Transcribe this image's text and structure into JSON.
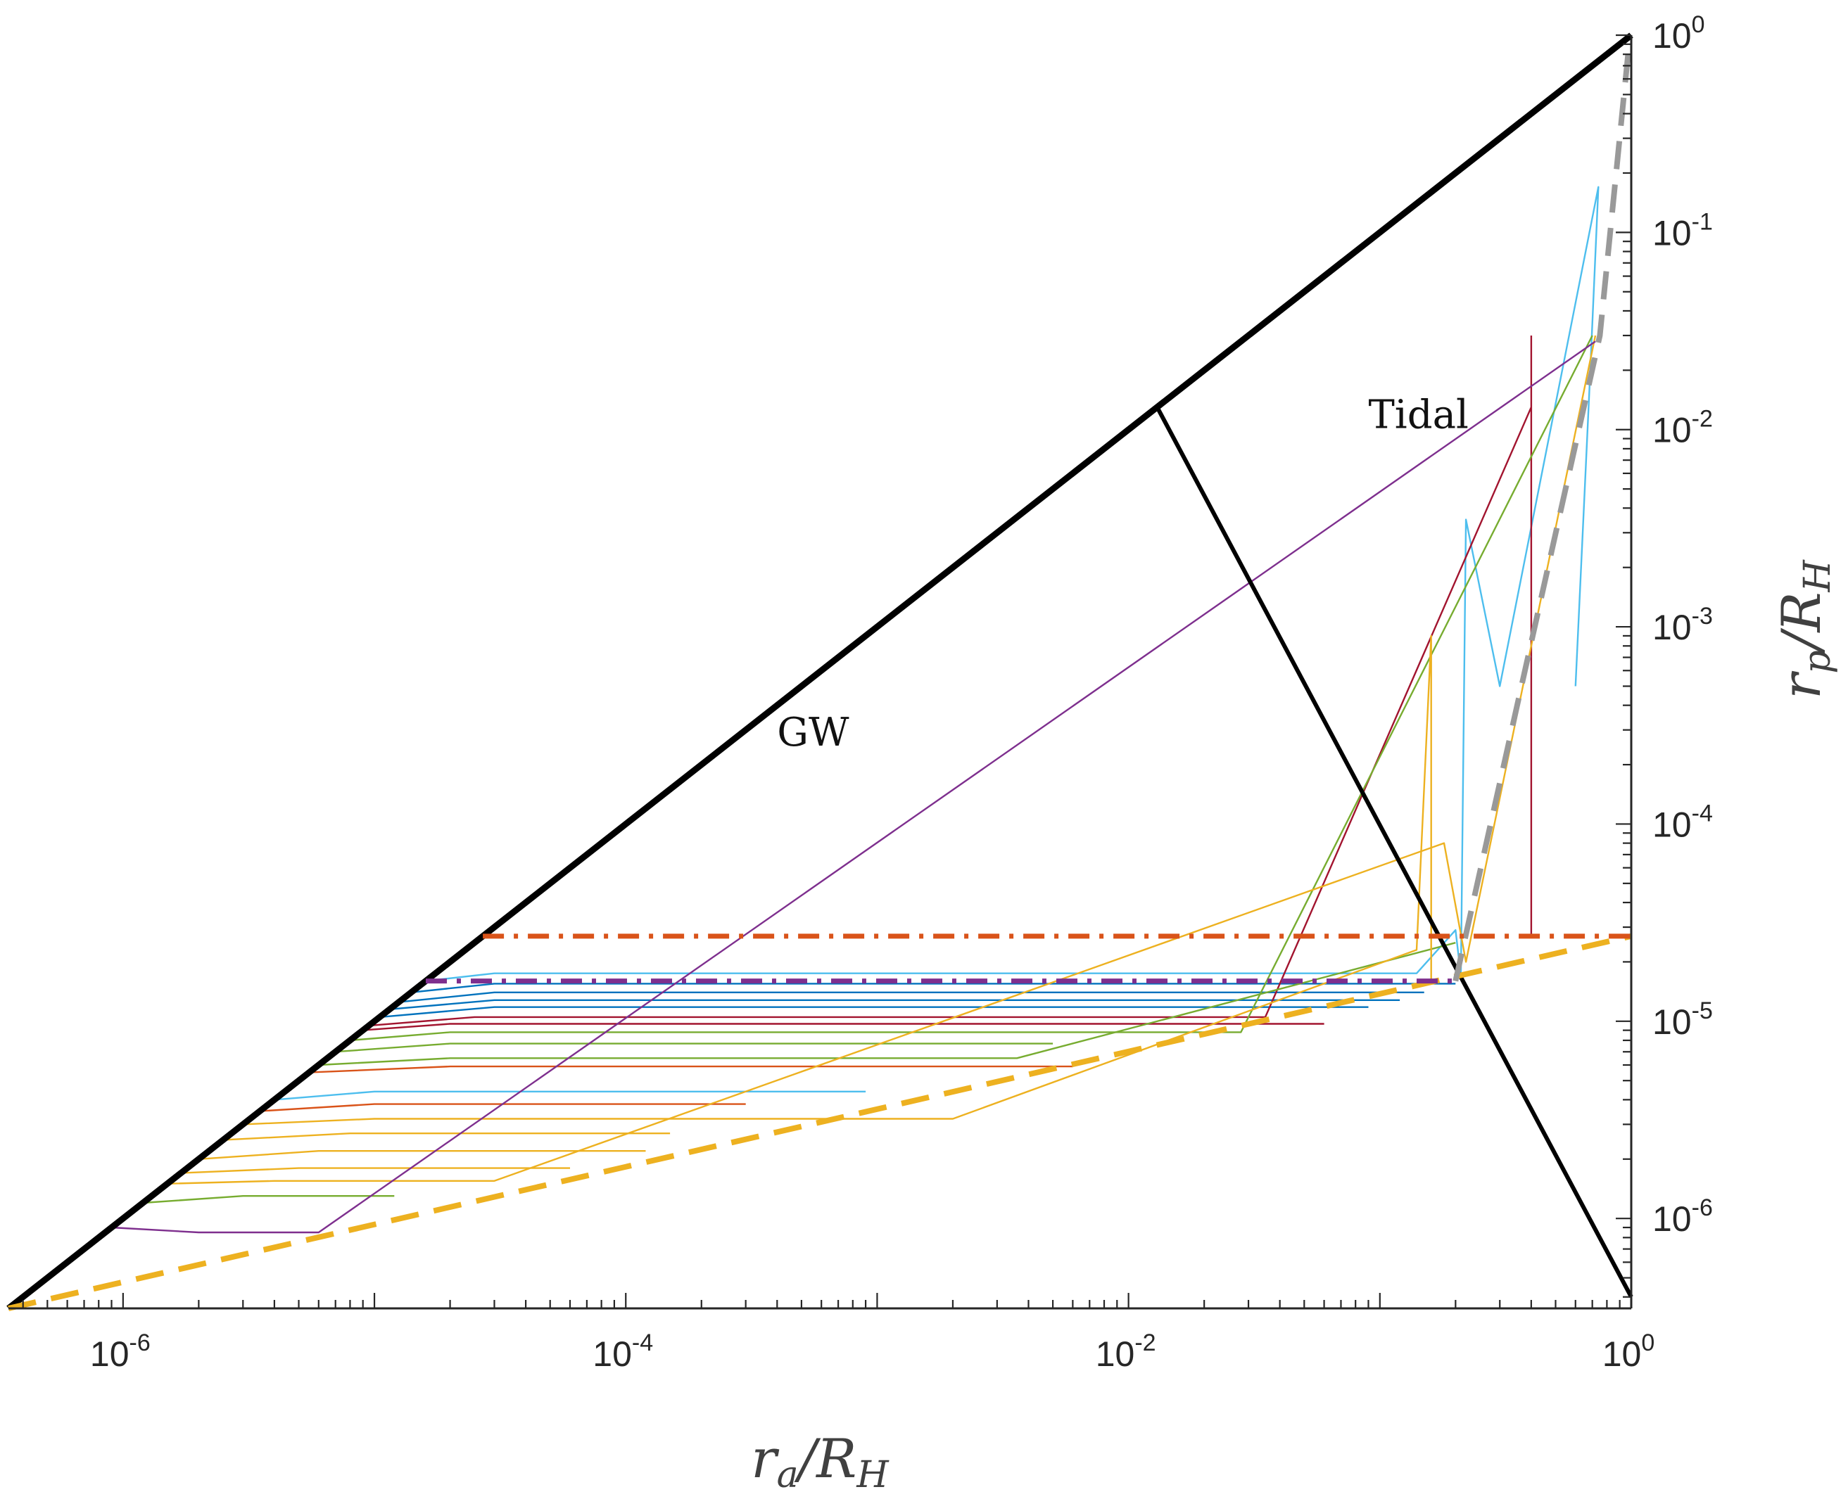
{
  "chart_data": {
    "type": "line",
    "xscale": "log",
    "yscale": "log",
    "xlim": [
      3.5e-07,
      1
    ],
    "ylim": [
      3.5e-07,
      1
    ],
    "xlabel": "r_a/R_H",
    "ylabel": "r_p/R_H",
    "xlabel_parts": {
      "main": "r",
      "sub": "a",
      "rest": "/R",
      "sub2": "H"
    },
    "ylabel_parts": {
      "main": "r",
      "sub": "p",
      "rest": "/R",
      "sub2": "H"
    },
    "x_ticks": [
      {
        "value": 1e-06,
        "base": "10",
        "exp": "-6"
      },
      {
        "value": 0.0001,
        "base": "10",
        "exp": "-4"
      },
      {
        "value": 0.01,
        "base": "10",
        "exp": "-2"
      },
      {
        "value": 1,
        "base": "10",
        "exp": "0"
      }
    ],
    "y_ticks": [
      {
        "value": 1e-06,
        "base": "10",
        "exp": "-6"
      },
      {
        "value": 1e-05,
        "base": "10",
        "exp": "-5"
      },
      {
        "value": 0.0001,
        "base": "10",
        "exp": "-4"
      },
      {
        "value": 0.001,
        "base": "10",
        "exp": "-3"
      },
      {
        "value": 0.01,
        "base": "10",
        "exp": "-2"
      },
      {
        "value": 0.1,
        "base": "10",
        "exp": "-1"
      },
      {
        "value": 1,
        "base": "10",
        "exp": "0"
      }
    ],
    "x_tick_label_values": [
      "10^-6",
      "10^-4",
      "10^-2",
      "10^0"
    ],
    "annotations": [
      {
        "text": "GW",
        "x": 0.0004,
        "y": 0.00025
      },
      {
        "text": "Tidal",
        "x": 0.09,
        "y": 0.0102
      }
    ],
    "guides": [
      {
        "name": "ra-equals-rp",
        "color": "#000000",
        "style": "solid-thick",
        "x": [
          3.5e-07,
          1
        ],
        "y": [
          3.5e-07,
          1
        ]
      },
      {
        "name": "gw-tidal-boundary",
        "color": "#000000",
        "style": "solid",
        "x": [
          0.013,
          1
        ],
        "y": [
          0.013,
          4e-07
        ]
      },
      {
        "name": "lower-dashed-orange",
        "color": "#EDB120",
        "style": "dashed",
        "x": [
          3.5e-07,
          1
        ],
        "y": [
          3.5e-07,
          2.7e-05
        ]
      },
      {
        "name": "lower-dashed-gray",
        "color": "#999999",
        "style": "dashed",
        "x": [
          0.2,
          0.75,
          0.98
        ],
        "y": [
          1.6e-05,
          0.03,
          0.9
        ]
      },
      {
        "name": "upper-dashdot-orange",
        "color": "#D95319",
        "style": "dash-dot",
        "x": [
          2.7e-05,
          1
        ],
        "y": [
          2.7e-05,
          2.7e-05
        ]
      },
      {
        "name": "upper-dashdot-purple",
        "color": "#7E2F8E",
        "style": "dash-dot",
        "x": [
          1.6e-05,
          0.2
        ],
        "y": [
          1.6e-05,
          1.6e-05
        ]
      }
    ],
    "series": [
      {
        "color": "#4DBEEE",
        "x": [
          1.6e-05,
          3e-05,
          0.14,
          0.2,
          0.21,
          0.22,
          0.3,
          0.55,
          0.74,
          0.68,
          0.6
        ],
        "y": [
          1.6e-05,
          1.75e-05,
          1.75e-05,
          2.9e-05,
          1.7e-05,
          0.0035,
          0.0005,
          0.025,
          0.17,
          0.015,
          0.0005
        ]
      },
      {
        "color": "#0072BD",
        "x": [
          1.4e-05,
          3e-05,
          0.2
        ],
        "y": [
          1.4e-05,
          1.55e-05,
          1.55e-05
        ]
      },
      {
        "color": "#0072BD",
        "x": [
          1.25e-05,
          3e-05,
          0.15
        ],
        "y": [
          1.25e-05,
          1.4e-05,
          1.4e-05
        ]
      },
      {
        "color": "#0072BD",
        "x": [
          1.15e-05,
          3e-05,
          0.12
        ],
        "y": [
          1.15e-05,
          1.28e-05,
          1.28e-05
        ]
      },
      {
        "color": "#0072BD",
        "x": [
          1.05e-05,
          3e-05,
          0.09
        ],
        "y": [
          1.05e-05,
          1.18e-05,
          1.18e-05
        ]
      },
      {
        "color": "#A2142F",
        "x": [
          9.5e-06,
          2.5e-05,
          0.035,
          0.4,
          0.4,
          0.4
        ],
        "y": [
          9.5e-06,
          1.05e-05,
          1.05e-05,
          0.013,
          2.7e-05,
          0.03
        ]
      },
      {
        "color": "#A2142F",
        "x": [
          9e-06,
          2e-05,
          0.06
        ],
        "y": [
          9e-06,
          9.7e-06,
          9.7e-06
        ]
      },
      {
        "color": "#77AC30",
        "x": [
          8e-06,
          2e-05,
          0.028,
          0.7
        ],
        "y": [
          8e-06,
          8.8e-06,
          8.8e-06,
          0.03
        ]
      },
      {
        "color": "#77AC30",
        "x": [
          7e-06,
          2e-05,
          0.005
        ],
        "y": [
          7e-06,
          7.7e-06,
          7.7e-06
        ]
      },
      {
        "color": "#77AC30",
        "x": [
          6e-06,
          2e-05,
          0.0036,
          0.2
        ],
        "y": [
          6e-06,
          6.5e-06,
          6.5e-06,
          2.5e-05
        ]
      },
      {
        "color": "#D95319",
        "x": [
          5.5e-06,
          2e-05,
          0.006
        ],
        "y": [
          5.5e-06,
          5.9e-06,
          5.9e-06
        ]
      },
      {
        "color": "#4DBEEE",
        "x": [
          4e-06,
          1e-05,
          0.0009
        ],
        "y": [
          4e-06,
          4.4e-06,
          4.4e-06
        ]
      },
      {
        "color": "#D95319",
        "x": [
          3.5e-06,
          1e-05,
          0.0003
        ],
        "y": [
          3.5e-06,
          3.8e-06,
          3.8e-06
        ]
      },
      {
        "color": "#EDB120",
        "x": [
          3e-06,
          1e-05,
          0.002,
          0.14,
          0.16,
          0.16
        ],
        "y": [
          3e-06,
          3.2e-06,
          3.2e-06,
          2.3e-05,
          0.0009,
          1.6e-05
        ]
      },
      {
        "color": "#EDB120",
        "x": [
          2.5e-06,
          8e-06,
          0.00015
        ],
        "y": [
          2.5e-06,
          2.7e-06,
          2.7e-06
        ]
      },
      {
        "color": "#EDB120",
        "x": [
          2e-06,
          6e-06,
          0.00012
        ],
        "y": [
          2e-06,
          2.2e-06,
          2.2e-06
        ]
      },
      {
        "color": "#EDB120",
        "x": [
          1.7e-06,
          5e-06,
          6e-05
        ],
        "y": [
          1.7e-06,
          1.8e-06,
          1.8e-06
        ]
      },
      {
        "color": "#EDB120",
        "x": [
          1.5e-06,
          4e-06,
          3e-05,
          0.18,
          0.22,
          0.72
        ],
        "y": [
          1.5e-06,
          1.55e-06,
          1.55e-06,
          8e-05,
          2e-05,
          0.03
        ]
      },
      {
        "color": "#77AC30",
        "x": [
          1.2e-06,
          3e-06,
          1.2e-05
        ],
        "y": [
          1.2e-06,
          1.3e-06,
          1.3e-06
        ]
      },
      {
        "color": "#7E2F8E",
        "x": [
          9e-07,
          2e-06,
          6e-06,
          0.72
        ],
        "y": [
          9e-07,
          8.5e-07,
          8.5e-07,
          0.028
        ]
      }
    ]
  }
}
